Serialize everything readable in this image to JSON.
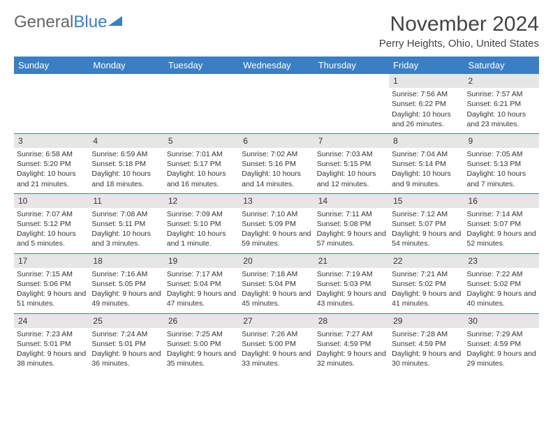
{
  "logo": {
    "text_gray": "General",
    "text_blue": "Blue"
  },
  "title": "November 2024",
  "location": "Perry Heights, Ohio, United States",
  "day_headers": [
    "Sunday",
    "Monday",
    "Tuesday",
    "Wednesday",
    "Thursday",
    "Friday",
    "Saturday"
  ],
  "colors": {
    "header_bg": "#3a7fc4",
    "header_text": "#ffffff",
    "daynum_bg": "#e6e6e6",
    "rule": "#3a7fc4",
    "text": "#333333",
    "logo_gray": "#666666",
    "logo_blue": "#3a7fc4",
    "background": "#ffffff"
  },
  "typography": {
    "title_fontsize": 30,
    "location_fontsize": 15,
    "header_fontsize": 13,
    "cell_fontsize": 10.5,
    "daynum_fontsize": 12
  },
  "weeks": [
    [
      null,
      null,
      null,
      null,
      null,
      {
        "n": "1",
        "sunrise": "7:56 AM",
        "sunset": "6:22 PM",
        "daylight": "10 hours and 26 minutes."
      },
      {
        "n": "2",
        "sunrise": "7:57 AM",
        "sunset": "6:21 PM",
        "daylight": "10 hours and 23 minutes."
      }
    ],
    [
      {
        "n": "3",
        "sunrise": "6:58 AM",
        "sunset": "5:20 PM",
        "daylight": "10 hours and 21 minutes."
      },
      {
        "n": "4",
        "sunrise": "6:59 AM",
        "sunset": "5:18 PM",
        "daylight": "10 hours and 18 minutes."
      },
      {
        "n": "5",
        "sunrise": "7:01 AM",
        "sunset": "5:17 PM",
        "daylight": "10 hours and 16 minutes."
      },
      {
        "n": "6",
        "sunrise": "7:02 AM",
        "sunset": "5:16 PM",
        "daylight": "10 hours and 14 minutes."
      },
      {
        "n": "7",
        "sunrise": "7:03 AM",
        "sunset": "5:15 PM",
        "daylight": "10 hours and 12 minutes."
      },
      {
        "n": "8",
        "sunrise": "7:04 AM",
        "sunset": "5:14 PM",
        "daylight": "10 hours and 9 minutes."
      },
      {
        "n": "9",
        "sunrise": "7:05 AM",
        "sunset": "5:13 PM",
        "daylight": "10 hours and 7 minutes."
      }
    ],
    [
      {
        "n": "10",
        "sunrise": "7:07 AM",
        "sunset": "5:12 PM",
        "daylight": "10 hours and 5 minutes."
      },
      {
        "n": "11",
        "sunrise": "7:08 AM",
        "sunset": "5:11 PM",
        "daylight": "10 hours and 3 minutes."
      },
      {
        "n": "12",
        "sunrise": "7:09 AM",
        "sunset": "5:10 PM",
        "daylight": "10 hours and 1 minute."
      },
      {
        "n": "13",
        "sunrise": "7:10 AM",
        "sunset": "5:09 PM",
        "daylight": "9 hours and 59 minutes."
      },
      {
        "n": "14",
        "sunrise": "7:11 AM",
        "sunset": "5:08 PM",
        "daylight": "9 hours and 57 minutes."
      },
      {
        "n": "15",
        "sunrise": "7:12 AM",
        "sunset": "5:07 PM",
        "daylight": "9 hours and 54 minutes."
      },
      {
        "n": "16",
        "sunrise": "7:14 AM",
        "sunset": "5:07 PM",
        "daylight": "9 hours and 52 minutes."
      }
    ],
    [
      {
        "n": "17",
        "sunrise": "7:15 AM",
        "sunset": "5:06 PM",
        "daylight": "9 hours and 51 minutes."
      },
      {
        "n": "18",
        "sunrise": "7:16 AM",
        "sunset": "5:05 PM",
        "daylight": "9 hours and 49 minutes."
      },
      {
        "n": "19",
        "sunrise": "7:17 AM",
        "sunset": "5:04 PM",
        "daylight": "9 hours and 47 minutes."
      },
      {
        "n": "20",
        "sunrise": "7:18 AM",
        "sunset": "5:04 PM",
        "daylight": "9 hours and 45 minutes."
      },
      {
        "n": "21",
        "sunrise": "7:19 AM",
        "sunset": "5:03 PM",
        "daylight": "9 hours and 43 minutes."
      },
      {
        "n": "22",
        "sunrise": "7:21 AM",
        "sunset": "5:02 PM",
        "daylight": "9 hours and 41 minutes."
      },
      {
        "n": "23",
        "sunrise": "7:22 AM",
        "sunset": "5:02 PM",
        "daylight": "9 hours and 40 minutes."
      }
    ],
    [
      {
        "n": "24",
        "sunrise": "7:23 AM",
        "sunset": "5:01 PM",
        "daylight": "9 hours and 38 minutes."
      },
      {
        "n": "25",
        "sunrise": "7:24 AM",
        "sunset": "5:01 PM",
        "daylight": "9 hours and 36 minutes."
      },
      {
        "n": "26",
        "sunrise": "7:25 AM",
        "sunset": "5:00 PM",
        "daylight": "9 hours and 35 minutes."
      },
      {
        "n": "27",
        "sunrise": "7:26 AM",
        "sunset": "5:00 PM",
        "daylight": "9 hours and 33 minutes."
      },
      {
        "n": "28",
        "sunrise": "7:27 AM",
        "sunset": "4:59 PM",
        "daylight": "9 hours and 32 minutes."
      },
      {
        "n": "29",
        "sunrise": "7:28 AM",
        "sunset": "4:59 PM",
        "daylight": "9 hours and 30 minutes."
      },
      {
        "n": "30",
        "sunrise": "7:29 AM",
        "sunset": "4:59 PM",
        "daylight": "9 hours and 29 minutes."
      }
    ]
  ],
  "labels": {
    "sunrise": "Sunrise:",
    "sunset": "Sunset:",
    "daylight": "Daylight:"
  }
}
